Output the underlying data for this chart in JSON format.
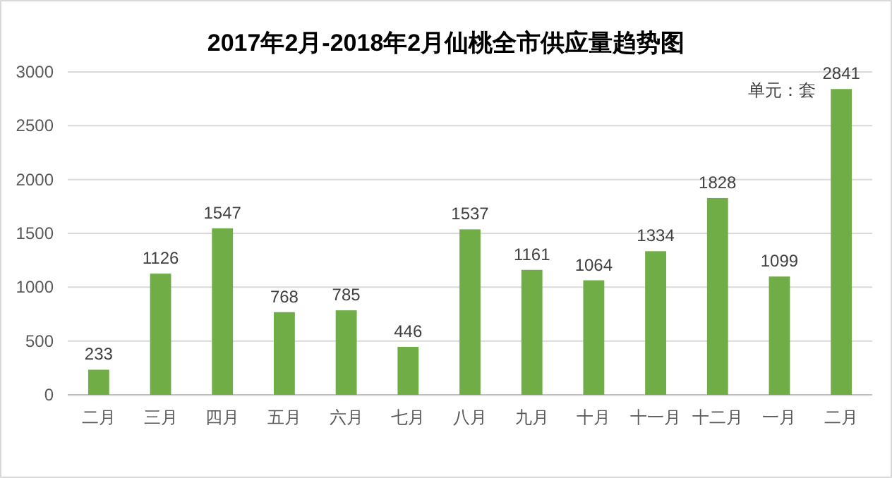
{
  "chart_data": {
    "type": "bar",
    "title": "2017年2月-2018年2月仙桃全市供应量趋势图",
    "categories": [
      "二月",
      "三月",
      "四月",
      "五月",
      "六月",
      "七月",
      "八月",
      "九月",
      "十月",
      "十一月",
      "十二月",
      "一月",
      "二月"
    ],
    "values": [
      233,
      1126,
      1547,
      768,
      785,
      446,
      1537,
      1161,
      1064,
      1334,
      1828,
      1099,
      2841
    ],
    "color": "#70ad47",
    "ylim": [
      0,
      3000
    ],
    "yticks": [
      0,
      500,
      1000,
      1500,
      2000,
      2500,
      3000
    ],
    "grid": "y",
    "data_labels": true,
    "annotations": [
      "单元：套"
    ]
  }
}
